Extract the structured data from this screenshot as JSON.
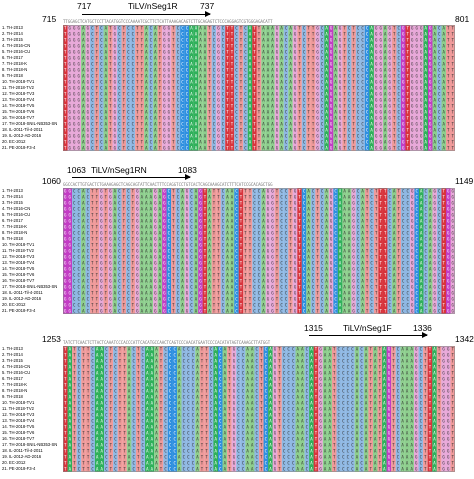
{
  "sequence_names": [
    "1. TH-2013",
    "2. TH-2014",
    "3. TH-2015",
    "4. TH-2016-CN",
    "5. TH-2016-CU",
    "6. TH-2017",
    "7. TH-2018-K",
    "8. TH-2018-N",
    "9. TH-2018",
    "10. TH-2018-TV1",
    "11. TH-2018-TV2",
    "12. TH-2018-TV3",
    "13. TH-2018-TV4",
    "14. TH-2018-TV5",
    "15. TH-2018-TV6",
    "16. TH-2018-TV7",
    "17. TH-2018-SNIL-NB353-SN",
    "18. IL-2011-Til-4-2011",
    "19. IL-2012-AD-2016",
    "20. EC-2012",
    "21. PE-2018-F3-4"
  ],
  "base_colors": {
    "A": "#8ecf8e",
    "C": "#8fb8e3",
    "G": "#e8a9d9",
    "T": "#ef9a9a",
    "highlight_A": "#2fb05a",
    "highlight_C": "#2e8fe0",
    "highlight_G": "#c23cc4",
    "highlight_T": "#d8343c",
    "grey": "#d9d9d9"
  },
  "panels": [
    {
      "start": "715",
      "end": "801",
      "primer": {
        "label": "TiLV/nSeg1R",
        "start": "717",
        "end": "737"
      },
      "consensus": "TTGGAGCTCATGCTCCTTACATGGTCCCAAAATCGCTTCTCATTAAAGACAGTCTTGCAGAGTCTCCCAGGAGTCGTGGGAGACATT",
      "sequence": "TGGGAGCTCATGCTCCTTACATGGTCCCAAAATCGCTTCTCATTAAAGACAGTCTTGCAGAGTCTCCCAGGAGTCGTGGGAGACATT",
      "highlight_cols": [
        0,
        26,
        27,
        28,
        29,
        36,
        37,
        41,
        42,
        58,
        59,
        67,
        68,
        75,
        76,
        80,
        81
      ]
    },
    {
      "start": "1060",
      "end": "1149",
      "primer": {
        "label": "TiLV/nSeg1RN",
        "start": "1063",
        "end": "1083"
      },
      "consensus": "GGCCACTTGTGACTCTGAAAGAGCTCAGCAGTATTCAACTTTCCAGGTCCTGTCACTCAGCAAAGCATCTTTCATCCGCACAGCTGG",
      "sequence": "GGCCACTTGTGACTCTGAAAGAGCTCAGCAGTATTCAACTTTCCAGGTCCTGTCACTCAGCAAAGCATCTTTCATCCGCACAGCTGG",
      "highlight_cols": [
        0,
        1,
        22,
        23,
        30,
        31,
        38,
        39,
        52,
        53,
        60,
        61,
        70,
        71,
        78,
        79,
        84,
        85
      ]
    },
    {
      "start": "1253",
      "end": "1342",
      "primer": {
        "label": "TiLV/nSeg1F",
        "start": "1315",
        "end": "1336"
      },
      "consensus": "TATCTTCAACTCTTACTCAAATCCCACCCATTCACATGCCAACTCAGTCCCAACATGAATCCCCACATATAGTCAAAGCTTATGGT",
      "sequence": "TATCTTCAACTCTTACTCAAATCCCACCCATTCACATGCCAACTCAGTCCCAACATGAATCCCCACATATAGTCAAAGCTTATGGT",
      "highlight_cols": [
        0,
        1,
        7,
        8,
        18,
        19,
        23,
        24,
        33,
        34,
        44,
        45,
        54,
        55,
        70,
        71,
        80,
        81
      ]
    }
  ]
}
